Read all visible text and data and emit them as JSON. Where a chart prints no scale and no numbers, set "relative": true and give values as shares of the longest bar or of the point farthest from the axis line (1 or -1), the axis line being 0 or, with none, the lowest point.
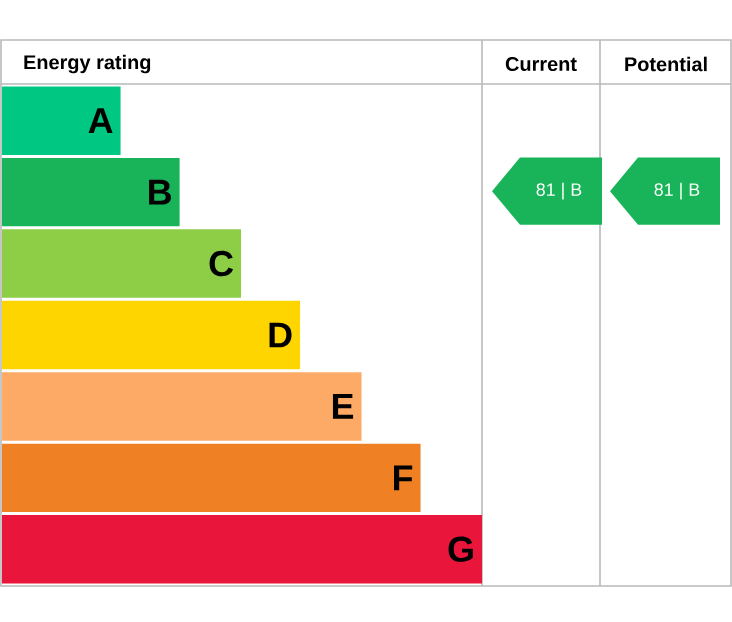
{
  "chart_data": {
    "type": "bar",
    "orientation": "horizontal",
    "relative": true,
    "title": "Energy rating",
    "categories": [
      "A",
      "B",
      "C",
      "D",
      "E",
      "F",
      "G"
    ],
    "values": [
      0.247,
      0.37,
      0.498,
      0.621,
      0.749,
      0.872,
      1
    ],
    "colors": [
      "#00c781",
      "#19b459",
      "#8dce46",
      "#ffd500",
      "#fcaa65",
      "#ef8023",
      "#e9153b"
    ],
    "annotations": [
      "Current",
      "Potential",
      "81 | B",
      "81 | B"
    ]
  }
}
